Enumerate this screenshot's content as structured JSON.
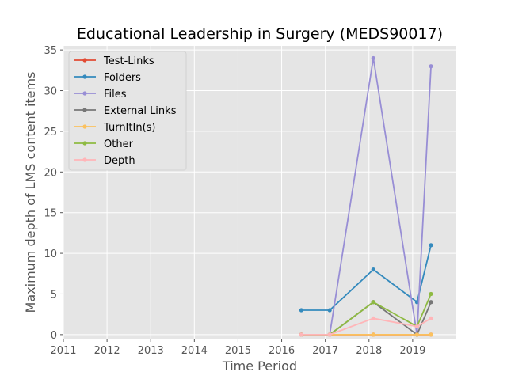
{
  "chart_data": {
    "type": "line",
    "title": "Educational Leadership in Surgery (MEDS90017)",
    "xlabel": "Time Period",
    "ylabel": "Maximum depth of LMS content items",
    "xlim": [
      2011,
      2020
    ],
    "ylim": [
      -0.5,
      35.5
    ],
    "x_ticks": [
      2011,
      2012,
      2013,
      2014,
      2015,
      2016,
      2017,
      2018,
      2019
    ],
    "y_ticks": [
      0,
      5,
      10,
      15,
      20,
      25,
      30,
      35
    ],
    "grid": true,
    "legend_position": "top-left",
    "x": [
      2016.45,
      2017.1,
      2018.1,
      2019.1,
      2019.42
    ],
    "series": [
      {
        "name": "Test-Links",
        "color": "#E24A33",
        "values": [
          0,
          0,
          0,
          0,
          0
        ]
      },
      {
        "name": "Folders",
        "color": "#348ABD",
        "values": [
          3,
          3,
          8,
          4,
          11
        ]
      },
      {
        "name": "Files",
        "color": "#988ED5",
        "values": [
          0,
          0,
          34,
          0,
          33
        ]
      },
      {
        "name": "External Links",
        "color": "#777777",
        "values": [
          0,
          0,
          4,
          0,
          4
        ]
      },
      {
        "name": "TurnItIn(s)",
        "color": "#FBC15E",
        "values": [
          0,
          0,
          0,
          0,
          0
        ]
      },
      {
        "name": "Other",
        "color": "#8EBA42",
        "values": [
          0,
          0,
          4,
          1,
          5
        ]
      },
      {
        "name": "Depth",
        "color": "#FFB5B8",
        "values": [
          0,
          0,
          2,
          1,
          2
        ]
      }
    ]
  }
}
